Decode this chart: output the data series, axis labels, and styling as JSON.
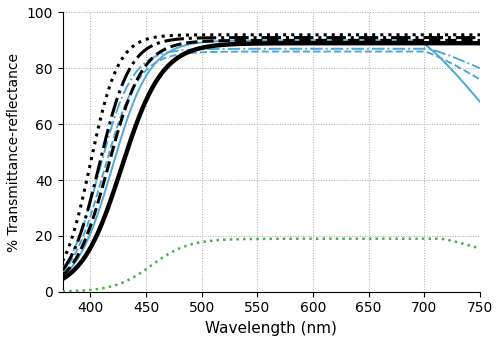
{
  "wavelengths_start": 375,
  "wavelengths_end": 750,
  "wavelengths_points": 376,
  "xlabel": "Wavelength (nm)",
  "ylabel": "% Transmittance-reflectance",
  "xlim": [
    375,
    750
  ],
  "ylim": [
    0,
    100
  ],
  "xticks": [
    400,
    450,
    500,
    550,
    600,
    650,
    700,
    750
  ],
  "yticks": [
    0,
    20,
    40,
    60,
    80,
    100
  ],
  "grid_color": "#aaaaaa",
  "black_solid_lw": 3.2,
  "black_other_lw": 2.2,
  "blue_lw": 1.4,
  "green_lw": 1.8
}
